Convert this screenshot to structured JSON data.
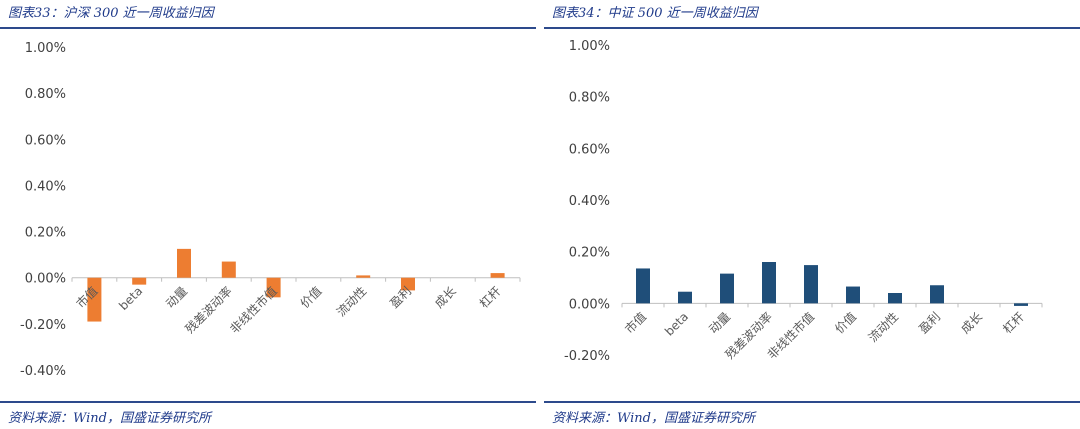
{
  "charts": [
    {
      "caption": "图表33：沪深 300 近一周收益归因",
      "source": "资料来源：Wind，国盛证券研究所",
      "chart_data": {
        "type": "bar",
        "title": "",
        "xlabel": "",
        "ylabel": "",
        "categories": [
          "市值",
          "beta",
          "动量",
          "残差波动率",
          "非线性市值",
          "价值",
          "流动性",
          "盈利",
          "成长",
          "杠杆"
        ],
        "values": [
          -0.0019,
          -0.0003,
          0.00125,
          0.0007,
          -0.00085,
          0.0,
          0.0001,
          -0.00055,
          0.0,
          0.0002
        ],
        "ylim": [
          -0.004,
          0.01
        ],
        "yticks": [
          "1.00%",
          "0.80%",
          "0.60%",
          "0.40%",
          "0.20%",
          "0.00%",
          "-0.20%",
          "-0.40%"
        ],
        "color": "#ed7d31",
        "grid": false
      }
    },
    {
      "caption": "图表34：中证 500 近一周收益归因",
      "source": "资料来源：Wind，国盛证券研究所",
      "chart_data": {
        "type": "bar",
        "title": "",
        "xlabel": "",
        "ylabel": "",
        "categories": [
          "市值",
          "beta",
          "动量",
          "残差波动率",
          "非线性市值",
          "价值",
          "流动性",
          "盈利",
          "成长",
          "杠杆"
        ],
        "values": [
          0.00135,
          0.00045,
          0.00115,
          0.0016,
          0.00148,
          0.00065,
          0.0004,
          0.0007,
          0.0,
          -0.0001
        ],
        "ylim": [
          -0.002,
          0.01
        ],
        "yticks": [
          "1.00%",
          "0.80%",
          "0.60%",
          "0.40%",
          "0.20%",
          "0.00%",
          "-0.20%"
        ],
        "color": "#1f4e79",
        "grid": false
      }
    }
  ]
}
